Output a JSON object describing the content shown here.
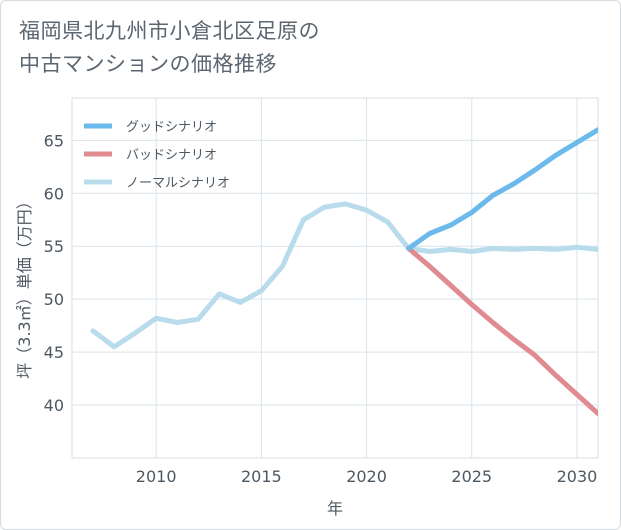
{
  "chart_data": {
    "type": "line",
    "title_lines": [
      "福岡県北九州市小倉北区足原の",
      "中古マンションの価格推移"
    ],
    "xlabel": "年",
    "ylabel": "坪（3.3㎡）単価（万円）",
    "xlim": [
      2006,
      2031
    ],
    "ylim": [
      35,
      69
    ],
    "xticks": [
      2010,
      2015,
      2020,
      2025,
      2030
    ],
    "yticks": [
      40,
      45,
      50,
      55,
      60,
      65
    ],
    "grid": true,
    "legend_position": "top-left",
    "series": [
      {
        "name": "グッドシナリオ",
        "color": "#6cb9ec",
        "x": [
          2022,
          2023,
          2024,
          2025,
          2026,
          2027,
          2028,
          2029,
          2030,
          2031
        ],
        "values": [
          54.8,
          56.2,
          57.0,
          58.2,
          59.8,
          60.9,
          62.2,
          63.6,
          64.8,
          66.0
        ]
      },
      {
        "name": "バッドシナリオ",
        "color": "#e08b92",
        "x": [
          2022,
          2023,
          2024,
          2025,
          2026,
          2027,
          2028,
          2029,
          2030,
          2031
        ],
        "values": [
          54.8,
          53.1,
          51.3,
          49.5,
          47.8,
          46.2,
          44.7,
          42.8,
          41.0,
          39.2
        ]
      },
      {
        "name": "ノーマルシナリオ",
        "color": "#b9dcec",
        "x": [
          2007,
          2008,
          2009,
          2010,
          2011,
          2012,
          2013,
          2014,
          2015,
          2016,
          2017,
          2018,
          2019,
          2020,
          2021,
          2022,
          2023,
          2024,
          2025,
          2026,
          2027,
          2028,
          2029,
          2030,
          2031
        ],
        "values": [
          47.0,
          45.5,
          46.8,
          48.2,
          47.8,
          48.1,
          50.5,
          49.7,
          50.8,
          53.1,
          57.5,
          58.7,
          59.0,
          58.4,
          57.3,
          54.8,
          54.5,
          54.7,
          54.5,
          54.8,
          54.7,
          54.8,
          54.7,
          54.9,
          54.7
        ]
      }
    ]
  }
}
